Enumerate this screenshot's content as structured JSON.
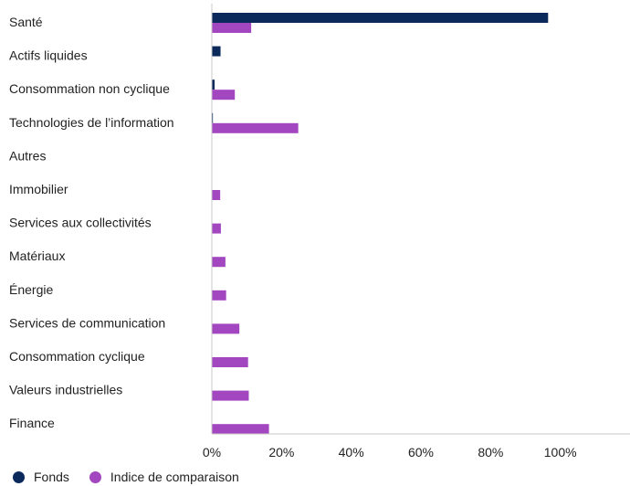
{
  "chart_data": {
    "type": "bar",
    "orientation": "horizontal",
    "categories": [
      "Santé",
      "Actifs liquides",
      "Consommation non cyclique",
      "Technologies de l’information",
      "Autres",
      "Immobilier",
      "Services aux collectivités",
      "Matériaux",
      "Énergie",
      "Services de communication",
      "Consommation cyclique",
      "Valeurs industrielles",
      "Finance"
    ],
    "series": [
      {
        "name": "Fonds",
        "color": "#0b2a5b",
        "values": [
          96.5,
          2.5,
          0.8,
          0.3,
          0,
          0,
          0,
          0,
          0,
          0,
          0,
          0,
          0
        ]
      },
      {
        "name": "Indice de comparaison",
        "color": "#a247bf",
        "values": [
          11.3,
          0,
          6.6,
          24.8,
          0,
          2.4,
          2.6,
          3.9,
          4.1,
          7.9,
          10.4,
          10.6,
          16.4
        ]
      }
    ],
    "xlim": [
      0,
      120
    ],
    "xticks": [
      "0%",
      "20%",
      "40%",
      "60%",
      "80%",
      "100%"
    ],
    "xtick_values": [
      0,
      20,
      40,
      60,
      80,
      100
    ],
    "grid": false,
    "legend_position": "bottom-left"
  }
}
